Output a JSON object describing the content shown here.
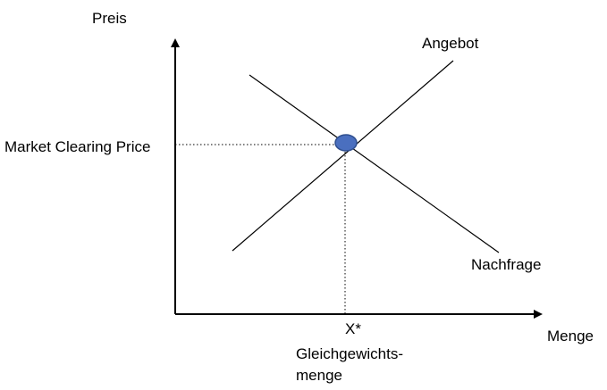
{
  "axes": {
    "y_label": "Preis",
    "x_label": "Menge"
  },
  "curves": {
    "supply_label": "Angebot",
    "demand_label": "Nachfrage"
  },
  "equilibrium": {
    "price_label": "Market Clearing Price",
    "quantity_label": "X*",
    "quantity_caption_line1": "Gleichgewichts-",
    "quantity_caption_line2": "menge",
    "marker_color": "#4a6fbf",
    "marker_stroke": "#2f4f8f"
  }
}
